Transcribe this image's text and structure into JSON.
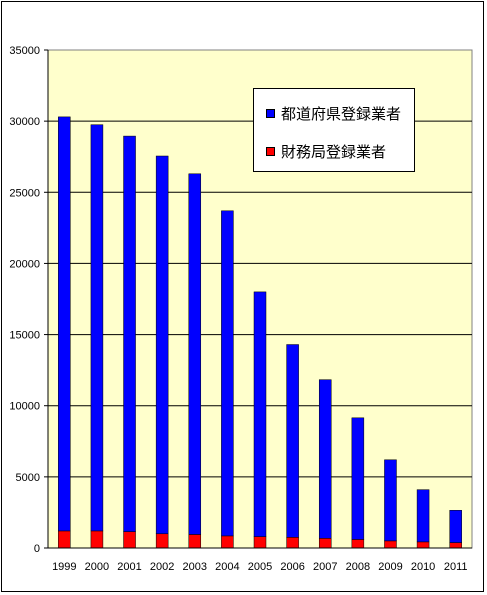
{
  "chart_data": {
    "type": "bar",
    "stacked": true,
    "categories": [
      "1999",
      "2000",
      "2001",
      "2002",
      "2003",
      "2004",
      "2005",
      "2006",
      "2007",
      "2008",
      "2009",
      "2010",
      "2011"
    ],
    "series": [
      {
        "name": "財務局登録業者",
        "color": "#ff0000",
        "values": [
          1200,
          1200,
          1150,
          1000,
          950,
          850,
          800,
          750,
          680,
          600,
          500,
          430,
          380
        ]
      },
      {
        "name": "都道府県登録業者",
        "color": "#0000ff",
        "values": [
          29100,
          28550,
          27800,
          26550,
          25350,
          22850,
          17200,
          13550,
          11150,
          8550,
          5700,
          3670,
          2270
        ]
      }
    ],
    "ylim": [
      0,
      35000
    ],
    "yticks": [
      0,
      5000,
      10000,
      15000,
      20000,
      25000,
      30000,
      35000
    ],
    "ytick_labels": [
      "0",
      "5000",
      "10000",
      "15000",
      "20000",
      "25000",
      "30000",
      "35000"
    ],
    "grid": true,
    "legend_position": "top-right",
    "plot_background": "#ffffcc"
  }
}
